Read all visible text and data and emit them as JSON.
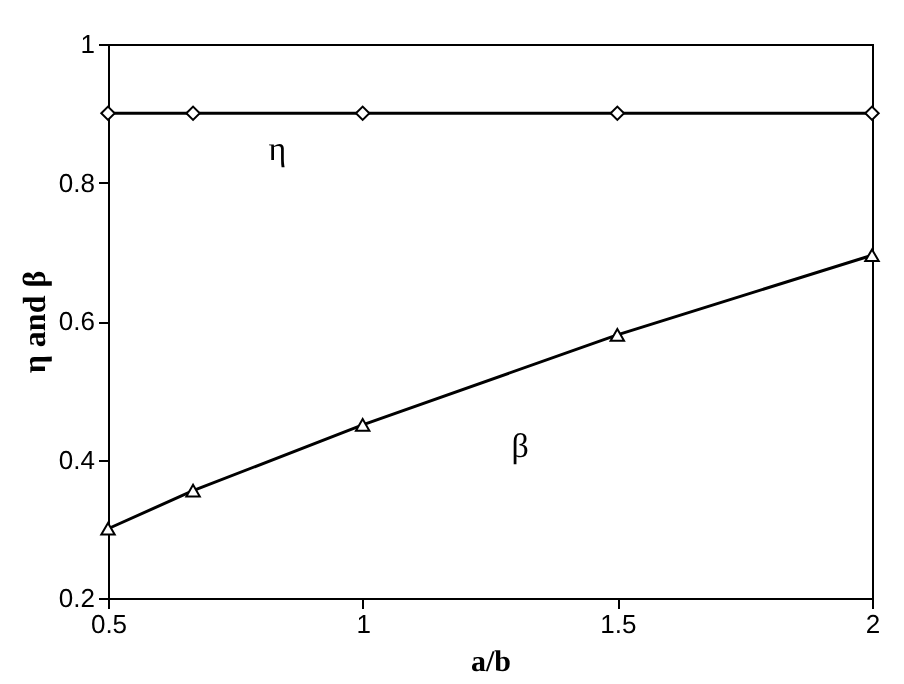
{
  "chart_data": {
    "type": "line",
    "xlabel": "a/b",
    "ylabel": "η and β",
    "xlim": [
      0.5,
      2
    ],
    "xticks": [
      0.5,
      1,
      1.5,
      2
    ],
    "ylim": [
      0.2,
      1
    ],
    "yticks": [
      0.2,
      0.4,
      0.6,
      0.8,
      1
    ],
    "x": [
      0.5,
      0.667,
      1,
      1.5,
      2
    ],
    "series": [
      {
        "color": "#000000",
        "marker": "diamond",
        "values": [
          0.9,
          0.9,
          0.9,
          0.9,
          0.9
        ]
      },
      {
        "color": "#000000",
        "marker": "triangle",
        "values": [
          0.3,
          0.355,
          0.45,
          0.58,
          0.695
        ]
      }
    ],
    "annotations": [
      "η",
      "β"
    ]
  }
}
